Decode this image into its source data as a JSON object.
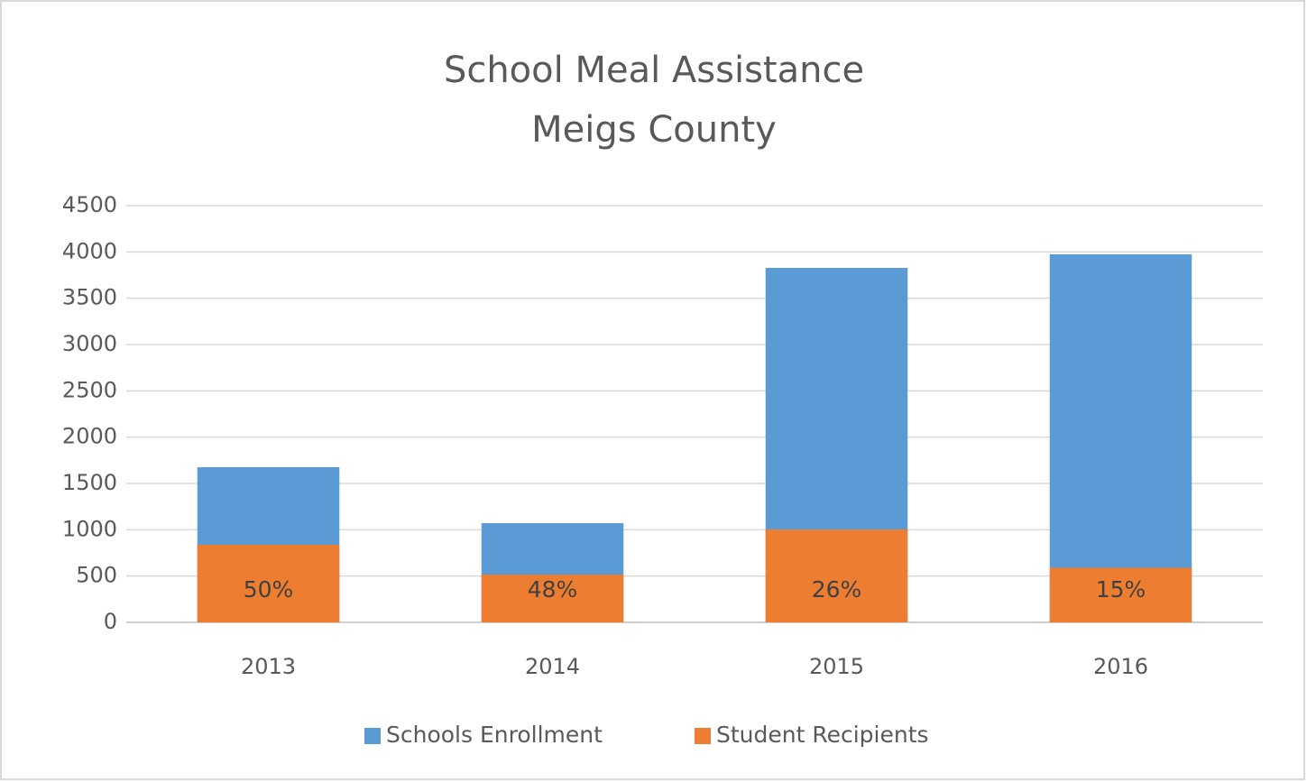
{
  "chart_data": {
    "type": "bar",
    "title": "School Meal Assistance",
    "subtitle": "Meigs County",
    "categories": [
      "2013",
      "2014",
      "2015",
      "2016"
    ],
    "series": [
      {
        "name": "Schools Enrollment",
        "color": "#5b9bd5",
        "values": [
          1675,
          1071,
          3828,
          3974
        ]
      },
      {
        "name": "Student Recipients",
        "color": "#ed7d31",
        "values": [
          838,
          516,
          1003,
          590
        ]
      }
    ],
    "annotations": [
      "50%",
      "48%",
      "26%",
      "15%"
    ],
    "ylim": [
      0,
      4500
    ],
    "yticks": [
      0,
      500,
      1000,
      1500,
      2000,
      2500,
      3000,
      3500,
      4000,
      4500
    ],
    "grid": true,
    "legend": "bottom"
  }
}
